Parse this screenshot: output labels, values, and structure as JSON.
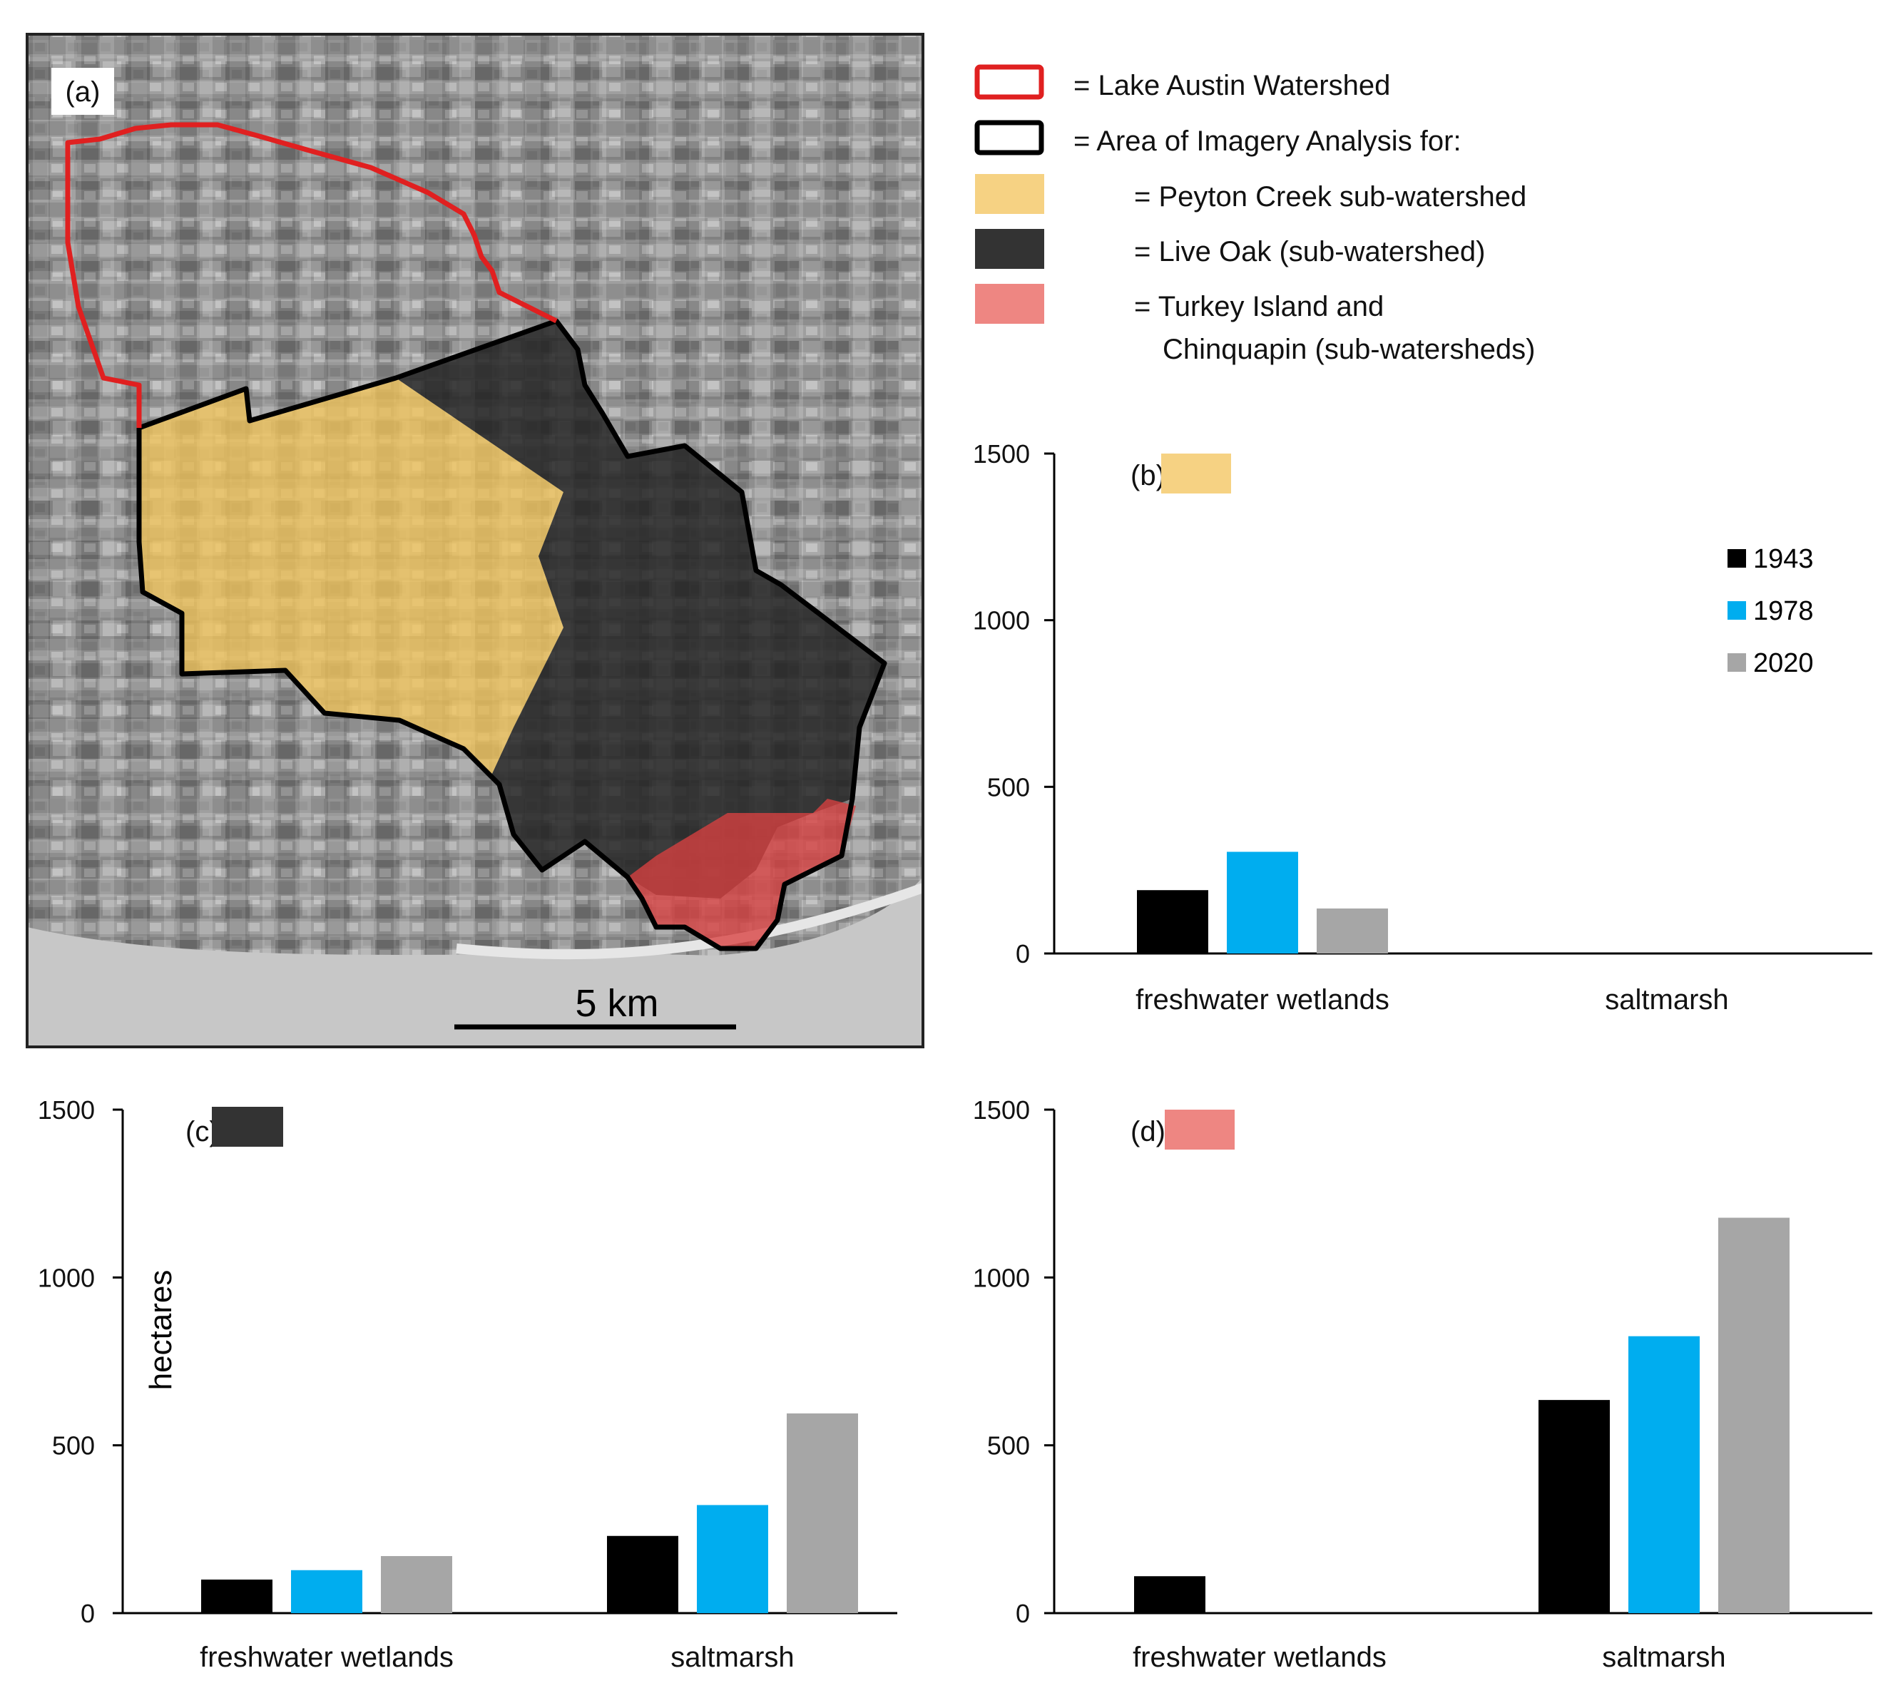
{
  "panel_a": {
    "label": "(a)",
    "scale_label": "5 km"
  },
  "legend": {
    "items": [
      {
        "text": "= Lake Austin Watershed"
      },
      {
        "text": "= Area of Imagery Analysis for:"
      },
      {
        "text": "= Peyton Creek sub-watershed"
      },
      {
        "text": "= Live Oak (sub-watershed)"
      },
      {
        "text": "= Turkey Island and"
      },
      {
        "text": "Chinquapin (sub-watersheds)"
      }
    ],
    "colors": {
      "lake_austin": "#e02020",
      "imagery_area": "#000000",
      "peyton": "#f6d283",
      "live_oak": "#333333",
      "turkey": "#ee8682"
    }
  },
  "series_colors": {
    "1943": "#000000",
    "1978": "#00adef",
    "2020": "#a6a6a6"
  },
  "chart_data": [
    {
      "id": "b",
      "type": "bar",
      "label": "(b)",
      "swatch_color": "#f6d283",
      "categories": [
        "freshwater wetlands",
        "saltmarsh"
      ],
      "series": [
        {
          "name": "1943",
          "values": [
            190,
            0
          ]
        },
        {
          "name": "1978",
          "values": [
            305,
            0
          ]
        },
        {
          "name": "2020",
          "values": [
            135,
            0
          ]
        }
      ],
      "ylim": [
        0,
        1500
      ],
      "yticks": [
        "0",
        "500",
        "1000",
        "1500"
      ],
      "ylabel": "",
      "legend": [
        "1943",
        "1978",
        "2020"
      ]
    },
    {
      "id": "c",
      "type": "bar",
      "label": "(c)",
      "swatch_color": "#333333",
      "categories": [
        "freshwater wetlands",
        "saltmarsh"
      ],
      "series": [
        {
          "name": "1943",
          "values": [
            100,
            230
          ]
        },
        {
          "name": "1978",
          "values": [
            128,
            322
          ]
        },
        {
          "name": "2020",
          "values": [
            170,
            595
          ]
        }
      ],
      "ylim": [
        0,
        1500
      ],
      "yticks": [
        "0",
        "500",
        "1000",
        "1500"
      ],
      "ylabel": "hectares"
    },
    {
      "id": "d",
      "type": "bar",
      "label": "(d)",
      "swatch_color": "#ee8682",
      "categories": [
        "freshwater wetlands",
        "saltmarsh"
      ],
      "series": [
        {
          "name": "1943",
          "values": [
            110,
            635
          ]
        },
        {
          "name": "1978",
          "values": [
            0,
            825
          ]
        },
        {
          "name": "2020",
          "values": [
            0,
            1178
          ]
        }
      ],
      "ylim": [
        0,
        1500
      ],
      "yticks": [
        "0",
        "500",
        "1000",
        "1500"
      ],
      "ylabel": ""
    }
  ]
}
